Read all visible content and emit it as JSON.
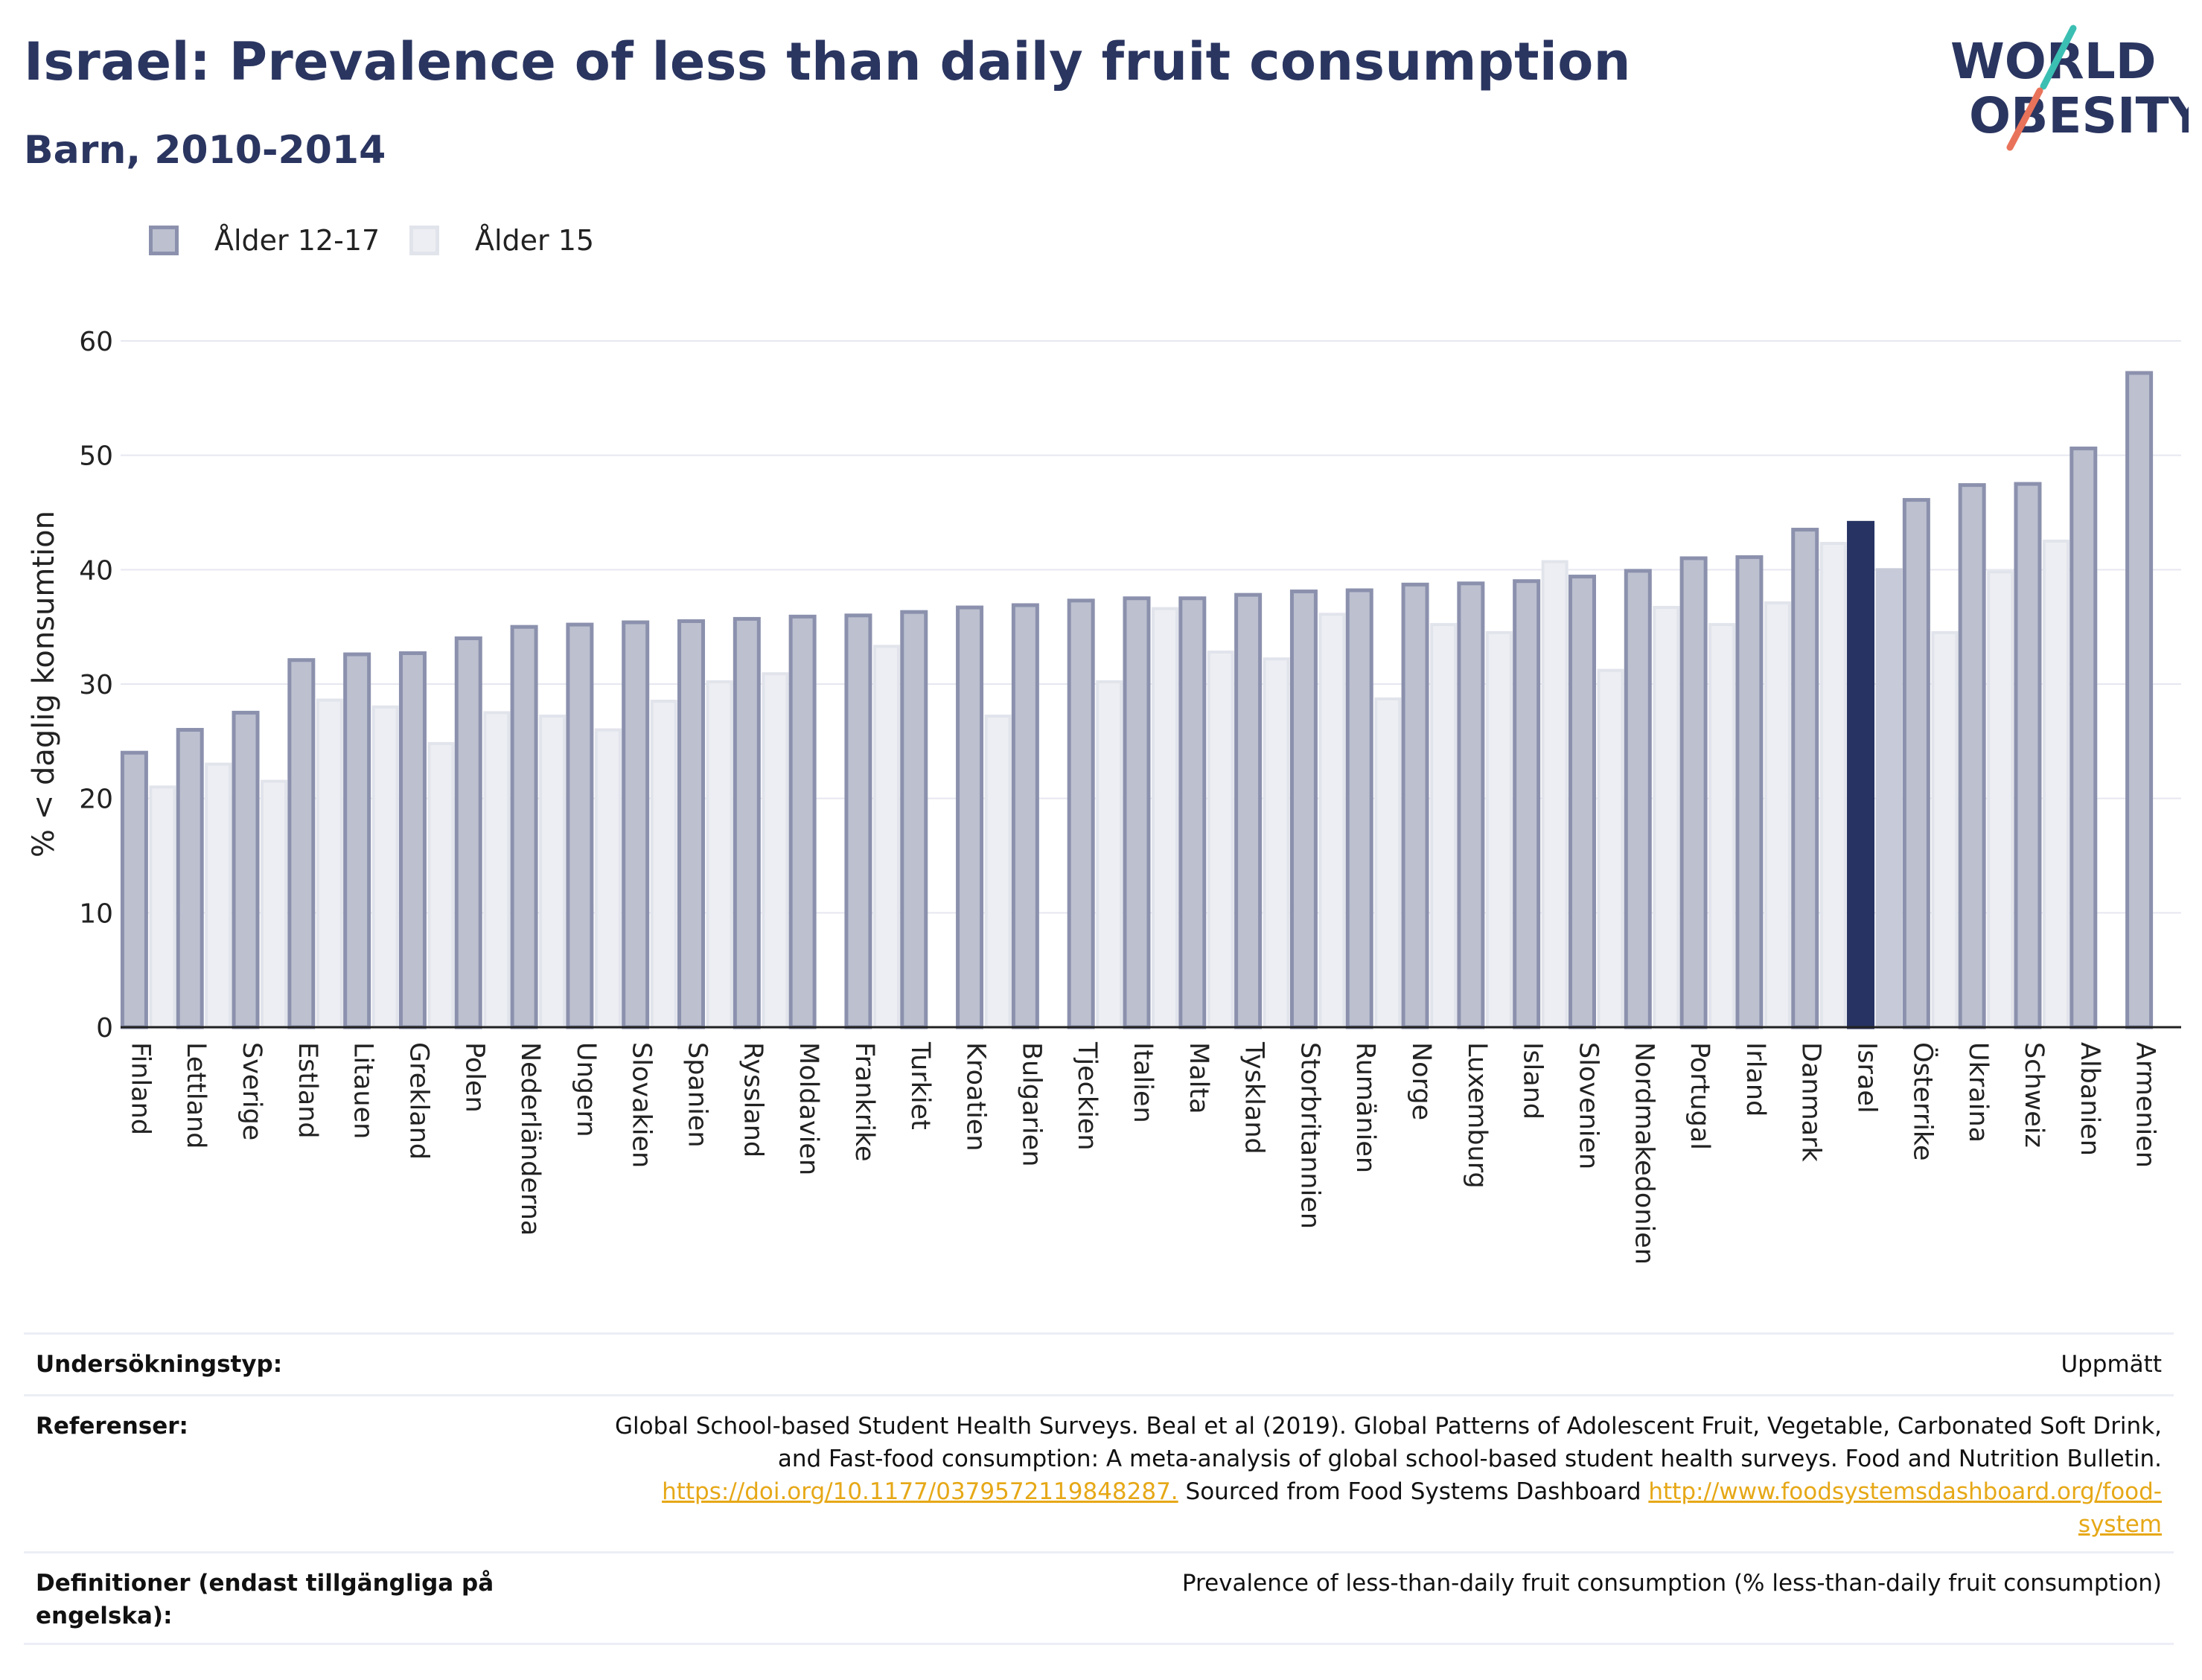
{
  "header": {
    "title": "Israel: Prevalence of less than daily fruit consumption",
    "subtitle": "Barn, 2010-2014"
  },
  "logo": {
    "line1": "WORLD",
    "line2": "OBESITY",
    "accent_colors": [
      "#3bbfb3",
      "#e9735a"
    ]
  },
  "legend": [
    {
      "label": "Ålder 12-17",
      "fill": "#bcc0cf",
      "stroke": "#8b91ad"
    },
    {
      "label": "Ålder 15",
      "fill": "#eceef3",
      "stroke": "#e2e4ec"
    }
  ],
  "chart_data": {
    "type": "bar",
    "ylabel": "% < daglig konsumtion",
    "ylim": [
      0,
      60
    ],
    "yticks": [
      0,
      10,
      20,
      30,
      40,
      50,
      60
    ],
    "grid": true,
    "highlight": "Israel",
    "colors": {
      "series1_fill": "#bcc0cf",
      "series1_stroke": "#8b91ad",
      "series2_fill": "#eceef3",
      "series2_stroke": "#e2e4ec",
      "highlight1": "#263363",
      "highlight2": "#c7cad8",
      "grid": "#e6e8f0",
      "axis": "#222222"
    },
    "categories": [
      "Finland",
      "Lettland",
      "Sverige",
      "Estland",
      "Litauen",
      "Grekland",
      "Polen",
      "Nederländerna",
      "Ungern",
      "Slovakien",
      "Spanien",
      "Ryssland",
      "Moldavien",
      "Frankrike",
      "Turkiet",
      "Kroatien",
      "Bulgarien",
      "Tjeckien",
      "Italien",
      "Malta",
      "Tyskland",
      "Storbritannien",
      "Rumänien",
      "Norge",
      "Luxemburg",
      "Island",
      "Slovenien",
      "Nordmakedonien",
      "Portugal",
      "Irland",
      "Danmark",
      "Israel",
      "Österrike",
      "Ukraina",
      "Schweiz",
      "Albanien",
      "Armenien"
    ],
    "series": [
      {
        "name": "Ålder 12-17",
        "values": [
          24.0,
          26.0,
          27.5,
          32.1,
          32.6,
          32.7,
          34.0,
          35.0,
          35.2,
          35.4,
          35.5,
          35.7,
          35.9,
          36.0,
          36.3,
          36.7,
          36.9,
          37.3,
          37.5,
          37.5,
          37.8,
          38.1,
          38.2,
          38.7,
          38.8,
          39.0,
          39.4,
          39.9,
          41.0,
          41.1,
          43.5,
          44.1,
          46.1,
          47.4,
          47.5,
          50.6,
          57.2
        ]
      },
      {
        "name": "Ålder 15",
        "values": [
          21.0,
          23.0,
          21.5,
          28.6,
          28.0,
          24.8,
          27.5,
          27.2,
          26.0,
          28.5,
          30.2,
          30.9,
          null,
          33.3,
          null,
          27.2,
          null,
          30.2,
          36.6,
          32.8,
          32.2,
          36.1,
          28.7,
          35.2,
          34.5,
          40.7,
          31.2,
          36.7,
          35.2,
          37.1,
          42.3,
          40.0,
          34.5,
          39.8,
          42.5,
          null,
          null
        ]
      }
    ]
  },
  "meta": {
    "survey_type_label": "Undersökningstyp:",
    "survey_type_value": "Uppmätt",
    "references_label": "Referenser:",
    "references_text1": "Global School-based Student Health Surveys. Beal et al (2019). Global Patterns of Adolescent Fruit, Vegetable, Carbonated Soft Drink,",
    "references_text2": "and Fast-food consumption: A meta-analysis of global school-based student health surveys. Food and Nutrition Bulletin.",
    "references_link1": "https://doi.org/10.1177/0379572119848287.",
    "references_text3": " Sourced from Food Systems Dashboard ",
    "references_link2a": "http://www.foodsystemsdashboard.org/food-",
    "references_link2b": "system",
    "definitions_label1": "Definitioner (endast tillgängliga på",
    "definitions_label2": "engelska):",
    "definitions_value": "Prevalence of less-than-daily fruit consumption (% less-than-daily fruit consumption)"
  }
}
